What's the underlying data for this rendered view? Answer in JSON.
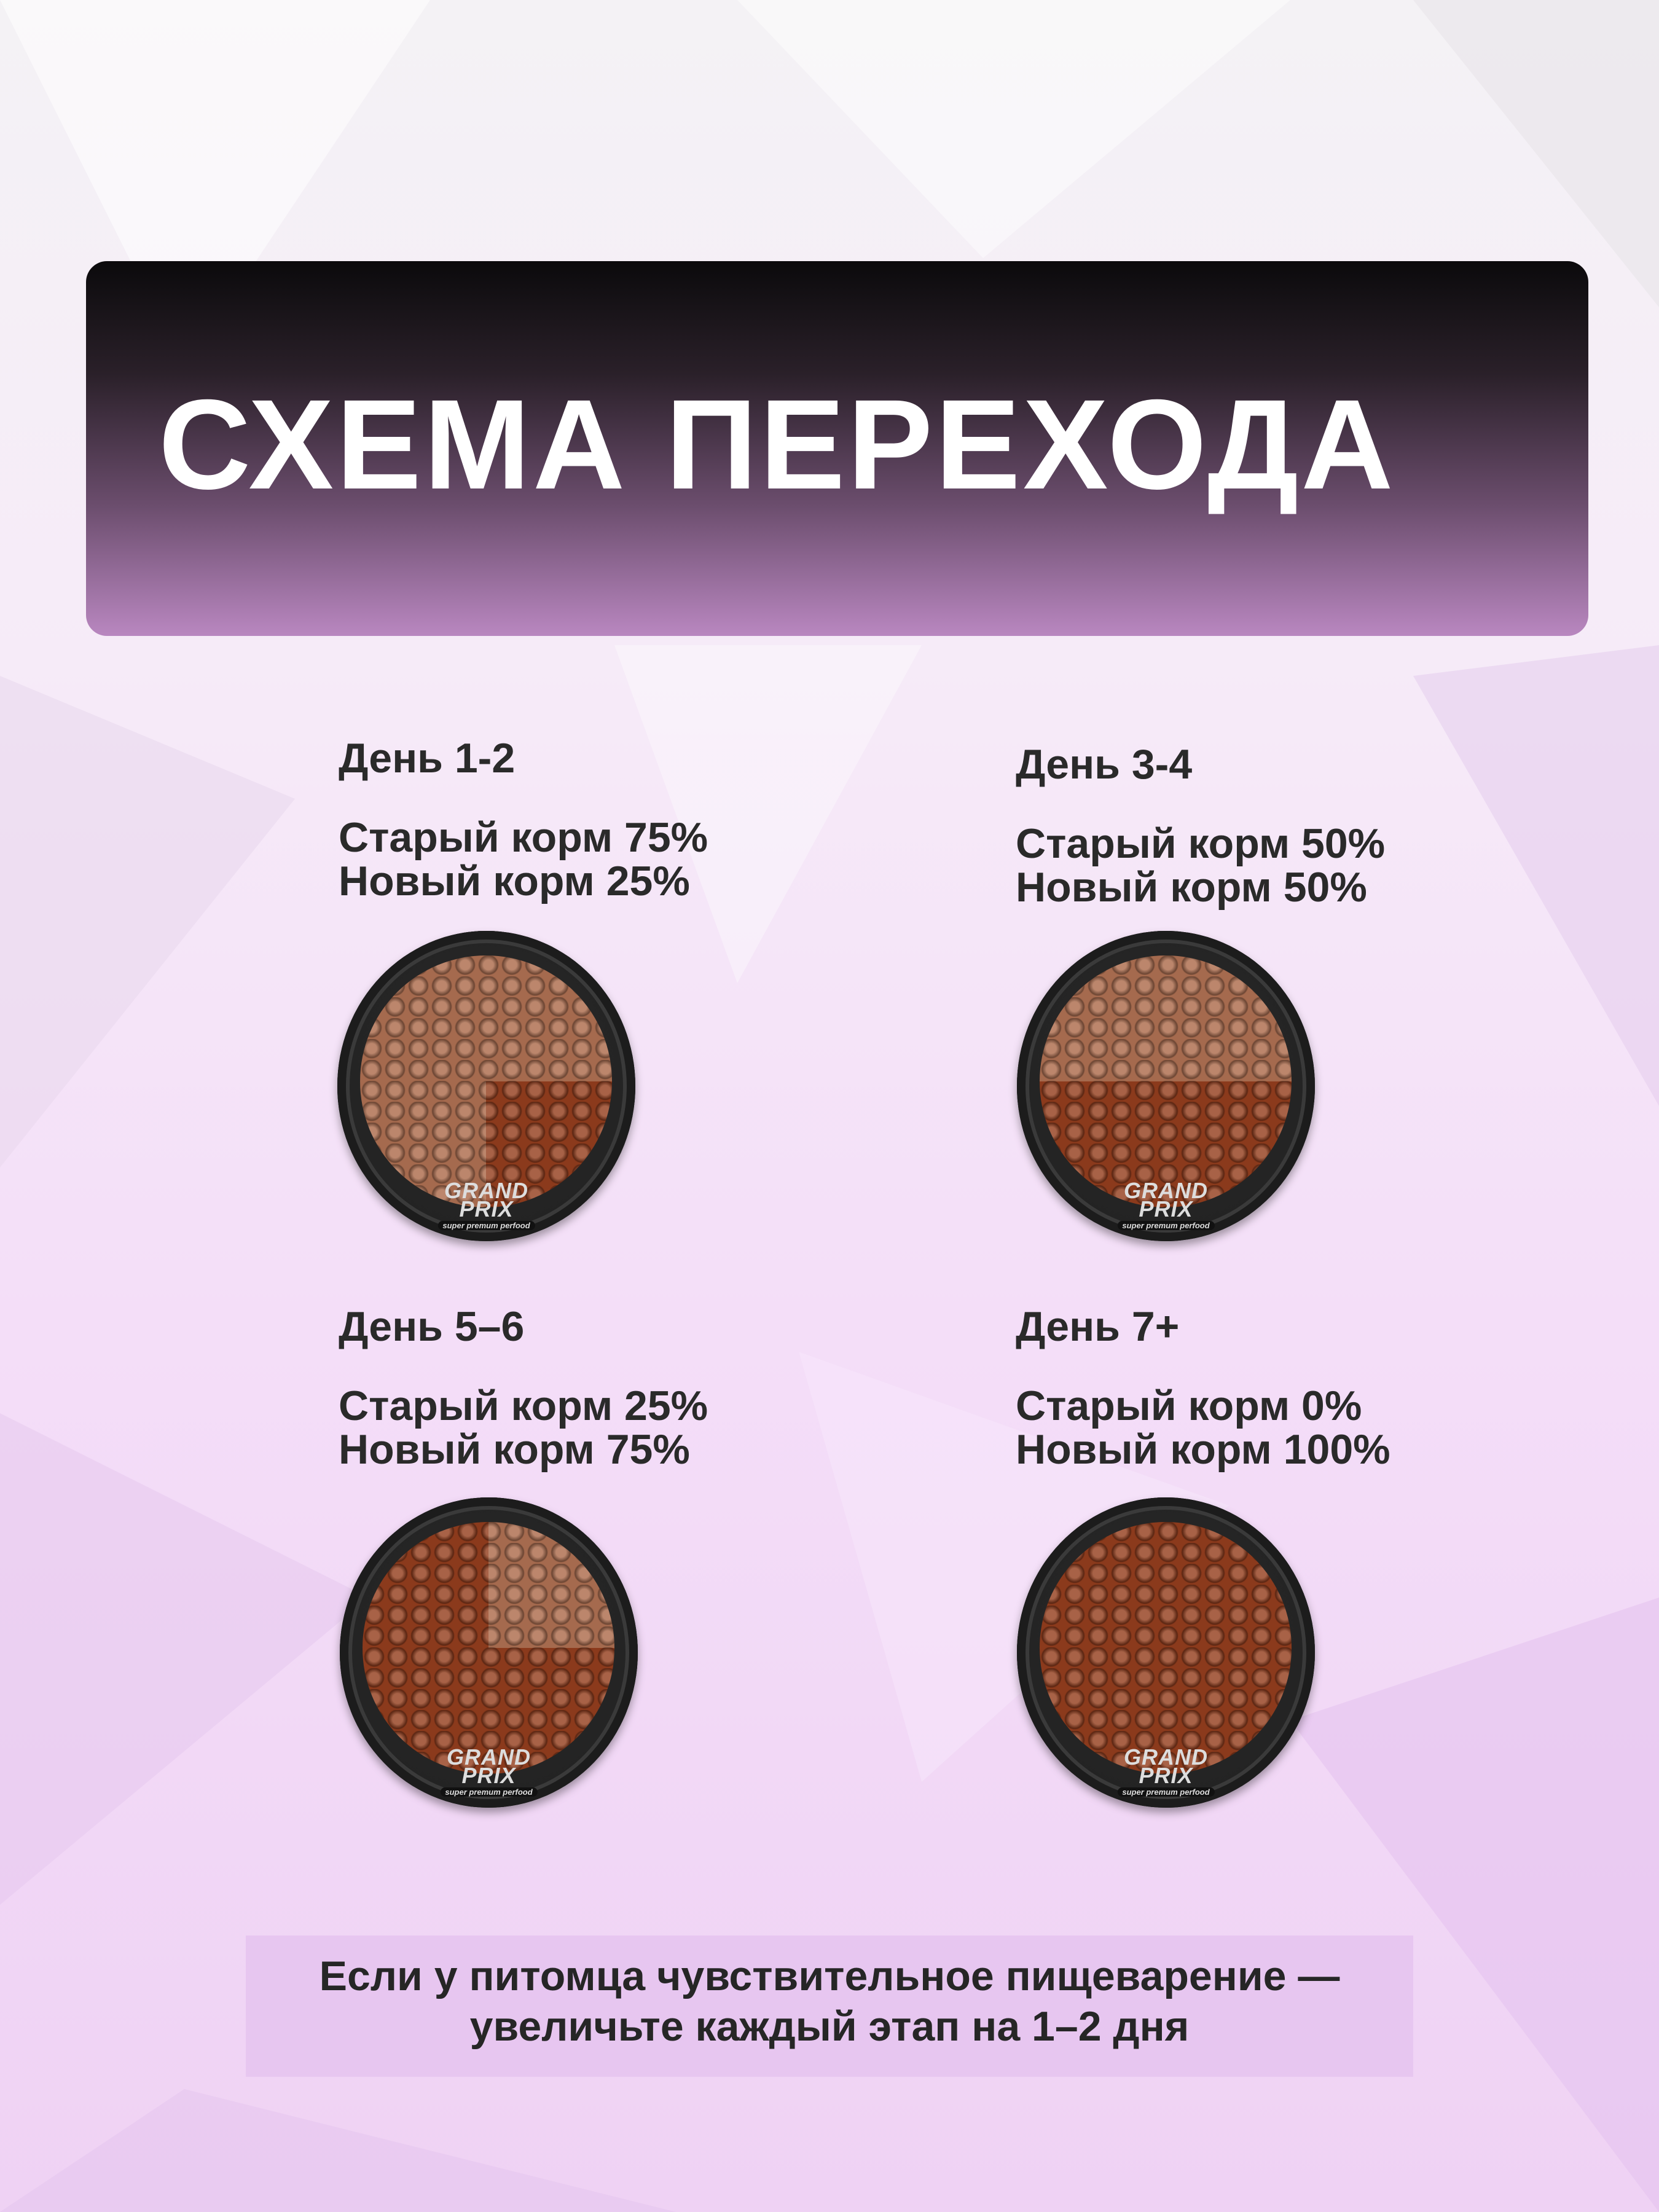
{
  "header": {
    "title": "СХЕМА ПЕРЕХОДА"
  },
  "colors": {
    "old_food": "#a56a4e",
    "new_food": "#8b3a1c",
    "bowl": "#232323",
    "text": "#2a2a2a"
  },
  "stages": [
    {
      "day": "День 1-2",
      "old": "Старый корм 75%",
      "new": "Новый корм 25%",
      "new_percent": 25
    },
    {
      "day": "День 3-4",
      "old": "Старый корм 50%",
      "new": "Новый корм 50%",
      "new_percent": 50
    },
    {
      "day": "День 5–6",
      "old": "Старый корм 25%",
      "new": "Новый корм 75%",
      "new_percent": 75
    },
    {
      "day": "День 7+",
      "old": "Старый корм 0%",
      "new": "Новый корм 100%",
      "new_percent": 100
    }
  ],
  "bowl_logo": {
    "line1": "GRAND",
    "line2": "PRIX",
    "tagline": "super premum perfood"
  },
  "footer": {
    "line1": "Если у питомца чувствительное пищеварение —",
    "line2": "увеличьте каждый  этап на 1–2 дня"
  }
}
